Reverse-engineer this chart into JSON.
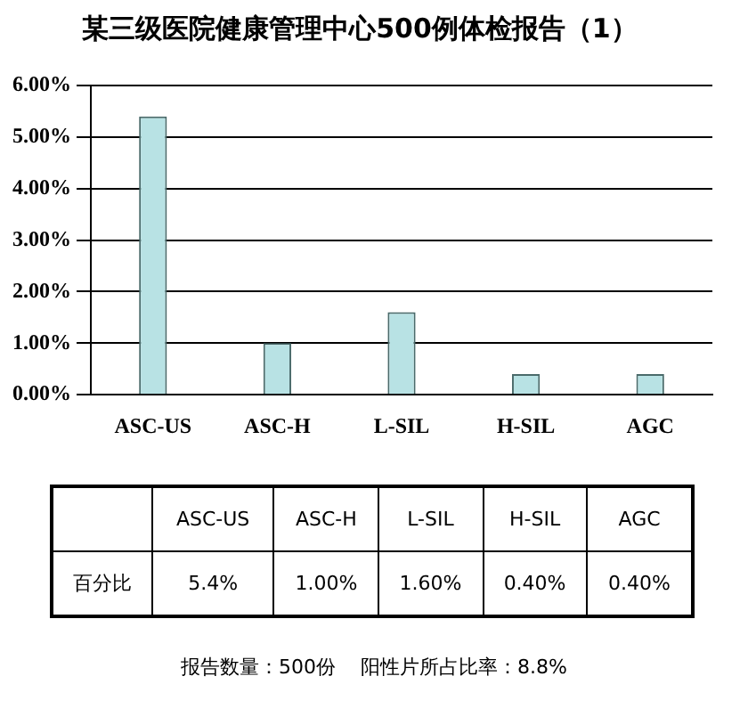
{
  "chart_data": {
    "type": "bar",
    "title": "某三级医院健康管理中心500例体检报告（1）",
    "categories": [
      "ASC-US",
      "ASC-H",
      "L-SIL",
      "H-SIL",
      "AGC"
    ],
    "values": [
      5.4,
      1.0,
      1.6,
      0.4,
      0.4
    ],
    "value_labels": [
      "5.4%",
      "1.00%",
      "1.60%",
      "0.40%",
      "0.40%"
    ],
    "color": "#b8e2e4",
    "ylim": [
      0,
      6
    ],
    "yticks": [
      {
        "value": 0,
        "label": "0.00%"
      },
      {
        "value": 1,
        "label": "1.00%"
      },
      {
        "value": 2,
        "label": "2.00%"
      },
      {
        "value": 3,
        "label": "3.00%"
      },
      {
        "value": 4,
        "label": "4.00%"
      },
      {
        "value": 5,
        "label": "5.00%"
      },
      {
        "value": 6,
        "label": "6.00%"
      }
    ],
    "grid": "y",
    "annotations": [
      "百分比",
      "报告数量：500份    阳性片所占比率：8.8%"
    ]
  }
}
